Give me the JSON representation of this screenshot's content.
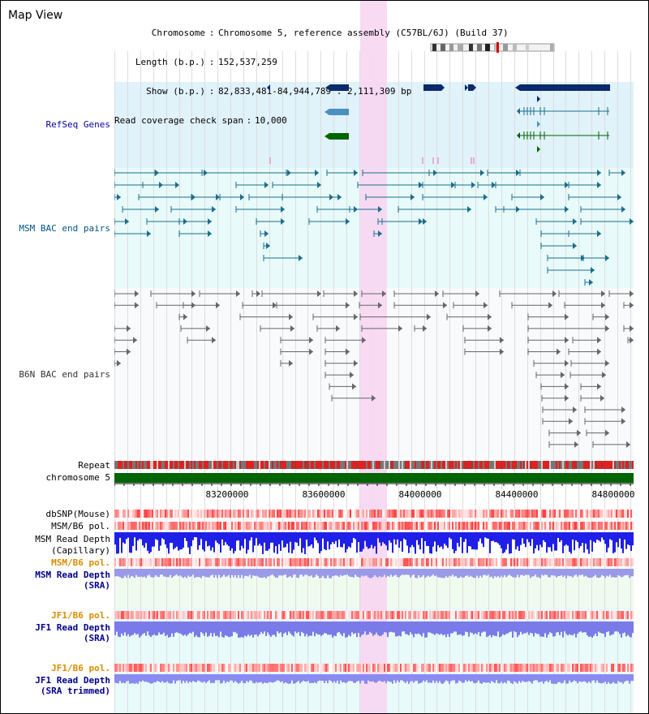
{
  "title": "Map View",
  "header": {
    "rows": [
      {
        "label": "Chromosome",
        "value": "Chromosome 5, reference assembly (C57BL/6J) (Build 37)"
      },
      {
        "label": "Length (b.p.)",
        "value": "152,537,259"
      },
      {
        "label": "Show (b.p.)",
        "value": "82,833,481-84,944,789 : 2,111,309 bp"
      },
      {
        "label": "Read coverage check span",
        "value": "10,000"
      }
    ]
  },
  "tracks": {
    "refseq": "RefSeq Genes",
    "msm_bac": "MSM BAC end pairs",
    "b6n_bac": "B6N BAC end pairs",
    "repeat": "Repeat",
    "chromosome": "chromosome 5",
    "dbsnp": "dbSNP(Mouse)",
    "msm_b6_pol": "MSM/B6 pol.",
    "msm_read_depth_cap_1": "MSM Read Depth",
    "msm_read_depth_cap_2": "(Capillary)",
    "msm_b6_pol_2": "MSM/B6 pol.",
    "msm_read_depth_sra_1": "MSM Read Depth",
    "msm_read_depth_sra_2": "(SRA)",
    "jf1_b6_pol": "JF1/B6 pol.",
    "jf1_read_depth_sra_1": "JF1 Read Depth",
    "jf1_read_depth_sra_2": "(SRA)",
    "jf1_b6_pol_2": "JF1/B6 pol.",
    "jf1_read_depth_trim_1": "JF1 Read Depth",
    "jf1_read_depth_trim_2": "(SRA trimmed)"
  },
  "axis": {
    "ticks": [
      "83200000",
      "83600000",
      "84000000",
      "84400000",
      "84800000"
    ]
  },
  "colors": {
    "refseq_bg": "#e0f2fa",
    "msm_bg": "#e8fafa",
    "highlight": "#f7d6f2",
    "chromosome_bar": "#006400",
    "gene_dark": "#0a2a6b",
    "gene_mid": "#4a90c0",
    "gene_green": "#006400",
    "bac_msm": "#1a6e8c",
    "bac_b6n": "#555555",
    "depth_blue": "#1f1fe8",
    "depth_light": "#8a8ae8",
    "snp_red": "#e84040"
  }
}
